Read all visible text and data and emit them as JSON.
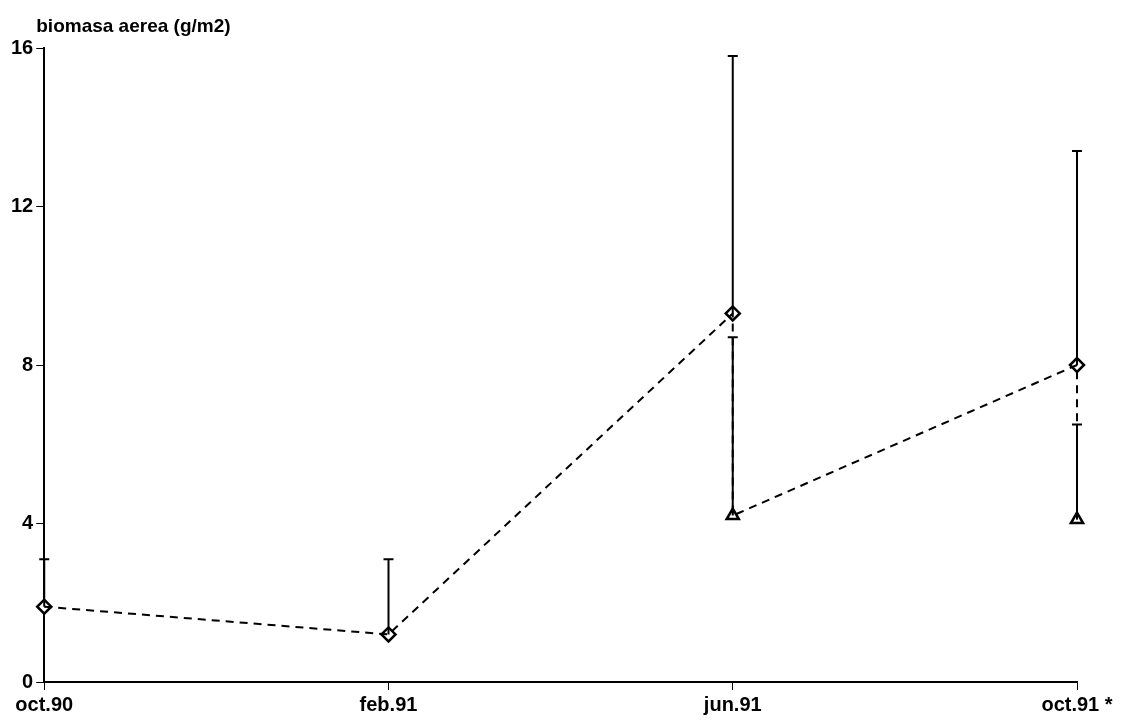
{
  "chart_data": {
    "type": "scatter",
    "ylabel": "biomasa aerea (g/m2)",
    "categories": [
      "oct.90",
      "feb.91",
      "jun.91",
      "oct.91 *"
    ],
    "series": [
      {
        "type": "line",
        "color": "#000000",
        "x": [
          "oct.90",
          "feb.91",
          "jun.91",
          "jun.91",
          "oct.91 *",
          "oct.91 *"
        ],
        "values": [
          1.9,
          1.2,
          9.3,
          4.2,
          8.0,
          4.1
        ],
        "marker": "none",
        "line_style": "dashed"
      },
      {
        "color": "#000000",
        "values": [
          1.9,
          1.2,
          9.3,
          8.0
        ],
        "errors": [
          [
            1.9,
            3.1
          ],
          [
            1.2,
            3.1
          ],
          [
            9.3,
            15.8
          ],
          [
            8.0,
            13.4
          ]
        ],
        "marker": "diamond"
      },
      {
        "color": "#000000",
        "values": [
          null,
          null,
          4.2,
          4.1
        ],
        "errors": [
          null,
          null,
          [
            4.2,
            8.7
          ],
          [
            4.1,
            6.5
          ]
        ],
        "marker": "triangle"
      }
    ],
    "ylim": [
      0,
      16
    ],
    "yticks": [
      0,
      4,
      8,
      12,
      16
    ],
    "grid": false,
    "legend": false
  }
}
